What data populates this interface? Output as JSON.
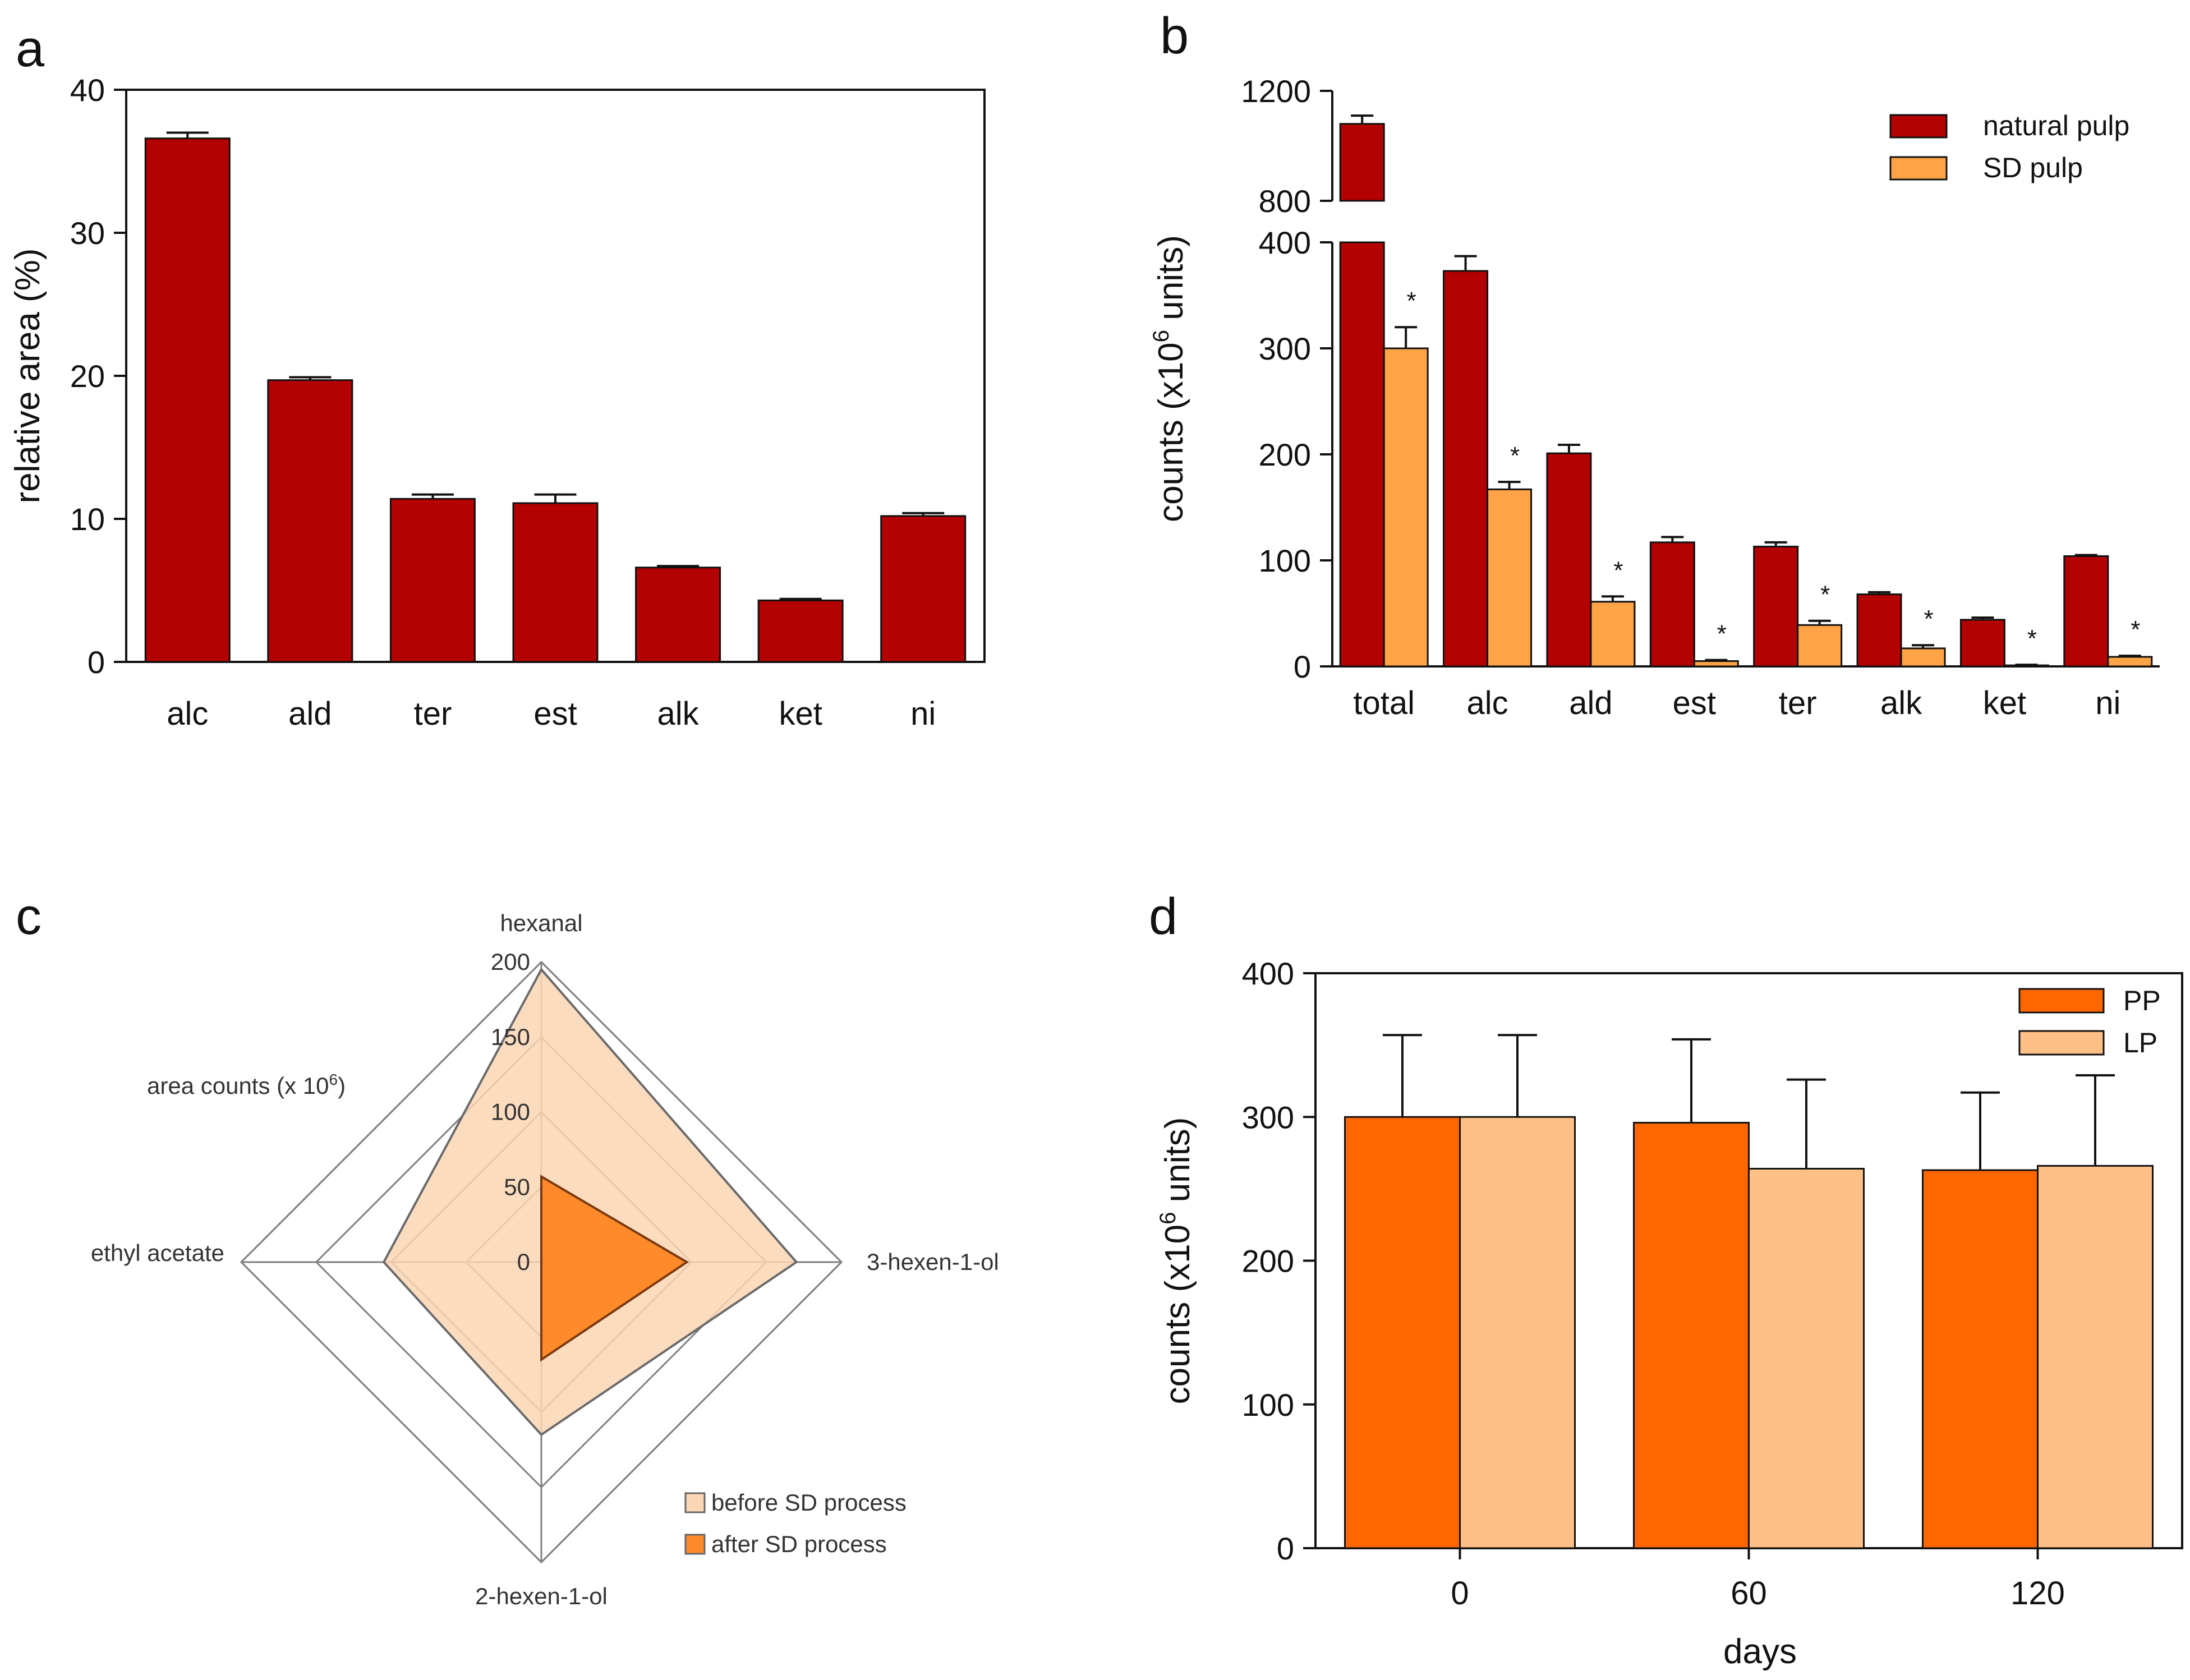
{
  "colors": {
    "dark_red": "#b30000",
    "light_orange": "#ffa347",
    "orange": "#ff6600",
    "peach": "#ffc088",
    "radar_before": "#fbd6b4",
    "radar_after": "#ff8a2a"
  },
  "panels": [
    {
      "id": "a",
      "label": "a"
    },
    {
      "id": "b",
      "label": "b"
    },
    {
      "id": "c",
      "label": "c"
    },
    {
      "id": "d",
      "label": "d"
    }
  ],
  "chart_data": [
    {
      "panel": "a",
      "type": "bar",
      "title": "",
      "xlabel": "",
      "ylabel": "relative area (%)",
      "ylim": [
        0,
        40
      ],
      "yticks": [
        "0",
        "10",
        "20",
        "30",
        "40"
      ],
      "categories": [
        "alc",
        "ald",
        "ter",
        "est",
        "alk",
        "ket",
        "ni"
      ],
      "series": [
        {
          "name": "",
          "values": [
            36.6,
            19.7,
            11.4,
            11.1,
            6.6,
            4.3,
            10.2
          ],
          "errors": [
            0.4,
            0.2,
            0.3,
            0.6,
            0.1,
            0.1,
            0.2
          ]
        }
      ]
    },
    {
      "panel": "b",
      "type": "bar",
      "title": "",
      "xlabel": "",
      "ylabel_prefix": "counts (x10",
      "ylabel_sup": "6",
      "ylabel_suffix": " units)",
      "ylim": [
        0,
        1200
      ],
      "axis_break": [
        400,
        800
      ],
      "yticks_lower": [
        "0",
        "100",
        "200",
        "300",
        "400"
      ],
      "yticks_upper": [
        "800",
        "1200"
      ],
      "categories": [
        "total",
        "alc",
        "ald",
        "est",
        "ter",
        "alk",
        "ket",
        "ni"
      ],
      "series": [
        {
          "name": "natural pulp",
          "values": [
            1080,
            373,
            201,
            117,
            113,
            68,
            44,
            104
          ],
          "errors": [
            30,
            14,
            8,
            5,
            4,
            2,
            2,
            1
          ]
        },
        {
          "name": "SD pulp",
          "values": [
            300,
            167,
            61,
            5,
            39,
            17,
            1,
            9
          ],
          "errors": [
            20,
            7,
            5,
            1,
            4,
            3,
            0.5,
            1
          ]
        }
      ],
      "significance_marker": "*"
    },
    {
      "panel": "c",
      "type": "radar",
      "title": "",
      "axis_label_prefix": "area counts (x 10",
      "axis_label_sup": "6",
      "axis_label_suffix": ")",
      "rlim": [
        0,
        200
      ],
      "rticks": [
        "0",
        "50",
        "100",
        "150",
        "200"
      ],
      "axes": [
        "hexanal",
        "3-hexen-1-ol",
        "2-hexen-1-ol",
        "ethyl acetate"
      ],
      "series": [
        {
          "name": "before SD process",
          "values": [
            195,
            170,
            115,
            105
          ]
        },
        {
          "name": "after SD process",
          "values": [
            57,
            97,
            65,
            0
          ]
        }
      ]
    },
    {
      "panel": "d",
      "type": "bar",
      "title": "",
      "xlabel": "days",
      "ylabel_prefix": "counts (x10",
      "ylabel_sup": "6",
      "ylabel_suffix": " units)",
      "ylim": [
        0,
        400
      ],
      "yticks": [
        "0",
        "100",
        "200",
        "300",
        "400"
      ],
      "categories": [
        "0",
        "60",
        "120"
      ],
      "series": [
        {
          "name": "PP",
          "values": [
            300,
            296,
            263
          ],
          "errors": [
            57,
            58,
            54
          ]
        },
        {
          "name": "LP",
          "values": [
            300,
            264,
            266
          ],
          "errors": [
            57,
            62,
            63
          ]
        }
      ]
    }
  ]
}
